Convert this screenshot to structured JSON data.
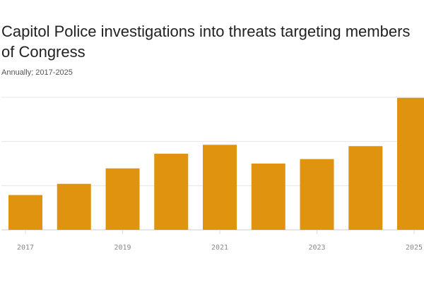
{
  "chart_data": {
    "type": "bar",
    "title": "Capitol Police investigations into threats targeting members of Congress",
    "subtitle": "Annually; 2017-2025",
    "categories": [
      "2017",
      "2018",
      "2019",
      "2020",
      "2021",
      "2022",
      "2023",
      "2024",
      "2025"
    ],
    "values": [
      3939,
      5206,
      6955,
      8613,
      9625,
      7501,
      8008,
      9474,
      14938
    ],
    "x_tick_labels": [
      "2017",
      "2019",
      "2021",
      "2023",
      "2025"
    ],
    "ylim": [
      0,
      15000
    ],
    "y_gridlines": [
      0,
      5000,
      10000,
      15000
    ],
    "grid": true,
    "bar_color": "#e0930f"
  }
}
